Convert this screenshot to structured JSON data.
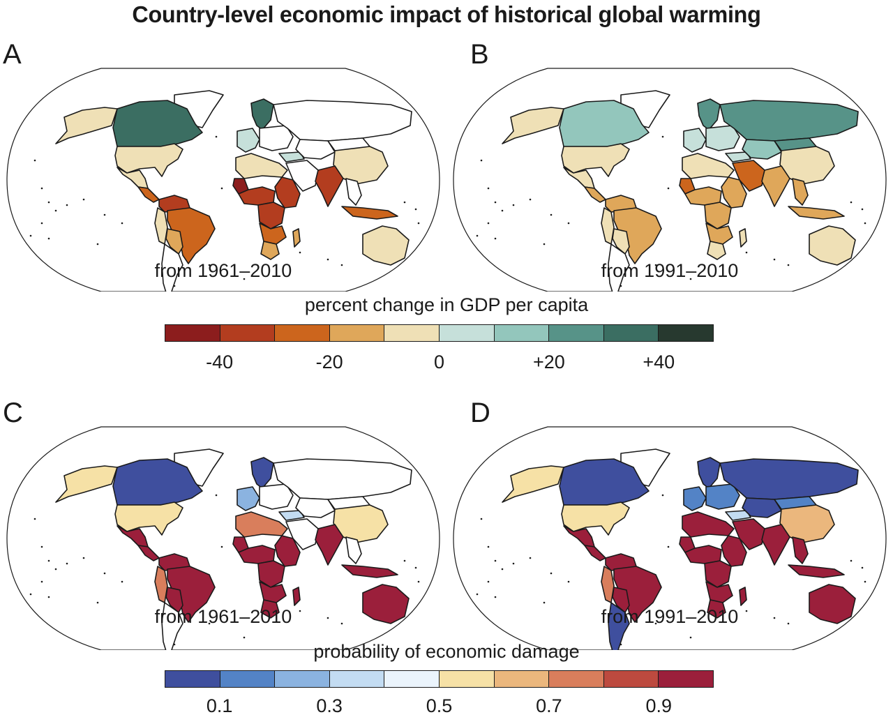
{
  "title": "Country-level economic impact of historical global warming",
  "colorbars": {
    "gdp": {
      "label": "percent change in GDP per capita",
      "colors": [
        "#8c1d1d",
        "#b33d1f",
        "#cc651d",
        "#dfa75a",
        "#efe0b6",
        "#c6e0da",
        "#93c6bc",
        "#579388",
        "#3b6e62",
        "#27392f"
      ],
      "tick_labels": [
        "-40",
        "-20",
        "0",
        "+20",
        "+40"
      ],
      "tick_values": [
        -40,
        -20,
        0,
        20,
        40
      ],
      "range": [
        -50,
        50
      ]
    },
    "prob": {
      "label": "probability of economic damage",
      "colors": [
        "#3f4f9e",
        "#5383c6",
        "#8bb3e0",
        "#c3dcf2",
        "#ebf4fc",
        "#f6e1a6",
        "#ebb77d",
        "#d97e5c",
        "#bd4a3f",
        "#9b1f3b"
      ],
      "tick_labels": [
        "0.1",
        "0.3",
        "0.5",
        "0.7",
        "0.9"
      ],
      "tick_values": [
        0.1,
        0.3,
        0.5,
        0.7,
        0.9
      ],
      "range": [
        0,
        1
      ]
    }
  },
  "panels": [
    {
      "letter": "A",
      "period": "from 1961–2010",
      "scale": "gdp",
      "regions": {
        "alaska": 4,
        "canada": 8,
        "usa": 4,
        "mexico": 4,
        "central_america": 2,
        "northern_south_america": 1,
        "brazil": 2,
        "andes_west": 4,
        "bolivia_paraguay": 3,
        "chile_argentina": -1,
        "greenland": -1,
        "scandinavia": 8,
        "western_europe": 5,
        "eastern_europe": -1,
        "russia": -1,
        "north_africa": 4,
        "sahel_west": 0,
        "west_africa": 1,
        "east_africa": 1,
        "central_africa": 1,
        "southern_africa": 2,
        "south_africa": 3,
        "madagascar": 3,
        "middle_east": -1,
        "turkey": 5,
        "central_asia": -1,
        "india": 1,
        "china": 4,
        "mongolia": -1,
        "southeast_asia": -1,
        "indonesia": 2,
        "australia": 4
      }
    },
    {
      "letter": "B",
      "period": "from 1991–2010",
      "scale": "gdp",
      "regions": {
        "alaska": 4,
        "canada": 6,
        "usa": 4,
        "mexico": 4,
        "central_america": 3,
        "northern_south_america": 3,
        "brazil": 3,
        "andes_west": 4,
        "bolivia_paraguay": 4,
        "chile_argentina": -1,
        "greenland": -1,
        "scandinavia": 7,
        "western_europe": 5,
        "eastern_europe": 5,
        "russia": 7,
        "north_africa": 4,
        "sahel_west": 2,
        "west_africa": 3,
        "east_africa": 3,
        "central_africa": 3,
        "southern_africa": 3,
        "south_africa": 4,
        "madagascar": 4,
        "middle_east": 2,
        "turkey": 5,
        "central_asia": 6,
        "india": 3,
        "china": 4,
        "mongolia": 7,
        "southeast_asia": 3,
        "indonesia": 3,
        "australia": 4
      }
    },
    {
      "letter": "C",
      "period": "from 1961–2010",
      "scale": "prob",
      "regions": {
        "alaska": 5,
        "canada": 0,
        "usa": 5,
        "mexico": 9,
        "central_america": 9,
        "northern_south_america": 9,
        "brazil": 9,
        "andes_west": 7,
        "bolivia_paraguay": 9,
        "chile_argentina": -1,
        "greenland": -1,
        "scandinavia": 0,
        "western_europe": 2,
        "eastern_europe": -1,
        "russia": -1,
        "north_africa": 7,
        "sahel_west": 9,
        "west_africa": 9,
        "east_africa": 9,
        "central_africa": 9,
        "southern_africa": 9,
        "south_africa": 9,
        "madagascar": 9,
        "middle_east": -1,
        "turkey": 3,
        "central_asia": -1,
        "india": 9,
        "china": 5,
        "mongolia": -1,
        "southeast_asia": -1,
        "indonesia": 9,
        "australia": 9
      }
    },
    {
      "letter": "D",
      "period": "from 1991–2010",
      "scale": "prob",
      "regions": {
        "alaska": 5,
        "canada": 0,
        "usa": 5,
        "mexico": 9,
        "central_america": 9,
        "northern_south_america": 9,
        "brazil": 9,
        "andes_west": 7,
        "bolivia_paraguay": 9,
        "chile_argentina": 0,
        "greenland": -1,
        "scandinavia": 0,
        "western_europe": 1,
        "eastern_europe": 1,
        "russia": 0,
        "north_africa": 9,
        "sahel_west": 9,
        "west_africa": 9,
        "east_africa": 9,
        "central_africa": 9,
        "southern_africa": 9,
        "south_africa": 9,
        "madagascar": 9,
        "middle_east": 9,
        "turkey": 3,
        "central_asia": 0,
        "india": 9,
        "china": 6,
        "mongolia": 1,
        "southeast_asia": 9,
        "indonesia": 9,
        "australia": 9
      }
    }
  ]
}
